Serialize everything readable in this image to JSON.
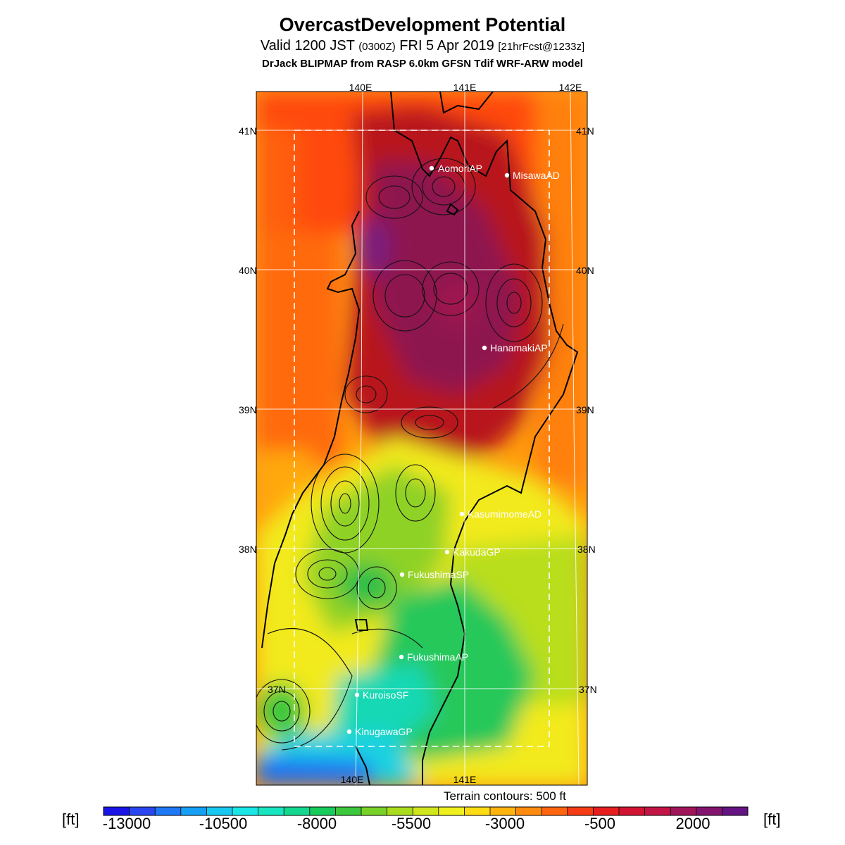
{
  "header": {
    "title": "OvercastDevelopment Potential",
    "valid_prefix": "Valid 1200 JST",
    "valid_utc": "(0300Z)",
    "valid_date": "FRI 5 Apr 2019",
    "forecast": "[21hrFcst@1233z]",
    "model": "DrJack BLIPMAP from RASP 6.0km GFSN Tdif WRF-ARW model"
  },
  "map": {
    "lon_labels_top": [
      "140E",
      "141E",
      "142E"
    ],
    "lon_labels_bottom": [
      "140E",
      "141E"
    ],
    "lat_labels": [
      "41N",
      "40N",
      "39N",
      "38N",
      "37N"
    ],
    "stations": [
      {
        "name": "AomoriAP"
      },
      {
        "name": "MisawaAD"
      },
      {
        "name": "HanamakiAP"
      },
      {
        "name": "KasumimomeAD"
      },
      {
        "name": "KakudaGP"
      },
      {
        "name": "FukushimaSP"
      },
      {
        "name": "FukushimaAP"
      },
      {
        "name": "KuroisoSF"
      },
      {
        "name": "KinugawaGP"
      }
    ]
  },
  "footer": {
    "terrain_note": "Terrain contours: 500 ft",
    "unit_left": "[ft]",
    "unit_right": "[ft]"
  },
  "colorbar": {
    "labels": [
      "-13000",
      "-10500",
      "-8000",
      "-5500",
      "-3000",
      "-500",
      "2000"
    ],
    "colors": [
      "#1a14e6",
      "#2a46f0",
      "#1f78f5",
      "#15a0f5",
      "#18c8f0",
      "#1ae6e6",
      "#17e6c0",
      "#14d790",
      "#17cc5a",
      "#3cc83c",
      "#78d228",
      "#aadc1e",
      "#d2e61e",
      "#f0f01e",
      "#ffdc14",
      "#ffb40f",
      "#ff8c0f",
      "#ff640f",
      "#f53c14",
      "#e61e1e",
      "#d21432",
      "#c31446",
      "#a0145a",
      "#82146e",
      "#641482"
    ]
  }
}
